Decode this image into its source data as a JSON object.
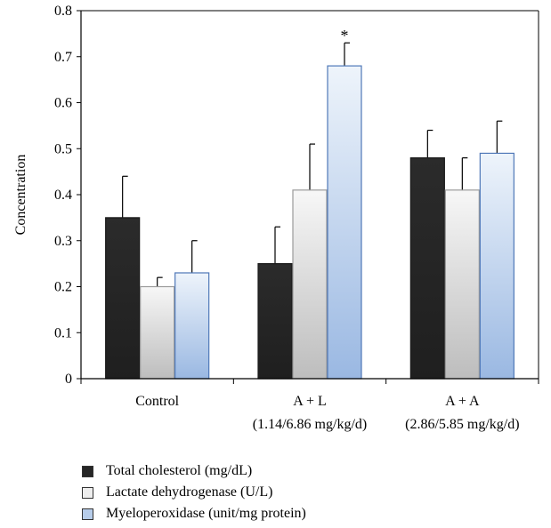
{
  "chart_data": {
    "type": "bar",
    "ylabel": "Concentration",
    "ylim": [
      0,
      0.8
    ],
    "yticks": [
      "0",
      "0.1",
      "0.2",
      "0.3",
      "0.4",
      "0.5",
      "0.6",
      "0.7",
      "0.8"
    ],
    "categories": [
      {
        "line1": "Control",
        "line2": ""
      },
      {
        "line1": "A + L",
        "line2": "(1.14/6.86 mg/kg/d)"
      },
      {
        "line1": "A + A",
        "line2": "(2.86/5.85 mg/kg/d)"
      }
    ],
    "series": [
      {
        "name": "Total cholesterol (mg/dL)",
        "color": "#262626",
        "values": [
          0.35,
          0.25,
          0.48
        ],
        "errors": [
          0.09,
          0.08,
          0.06
        ]
      },
      {
        "name": "Lactate dehydrogenase (U/L)",
        "color": "#e8e8e8",
        "values": [
          0.2,
          0.41,
          0.41
        ],
        "errors": [
          0.02,
          0.1,
          0.07
        ]
      },
      {
        "name": "Myeloperoxidase (unit/mg protein)",
        "color": "#a9c4e6",
        "values": [
          0.23,
          0.68,
          0.49
        ],
        "errors": [
          0.07,
          0.05,
          0.07
        ]
      }
    ],
    "annotations": [
      {
        "category": 1,
        "series": 2,
        "text": "*"
      }
    ],
    "legend_position": "bottom-left"
  }
}
